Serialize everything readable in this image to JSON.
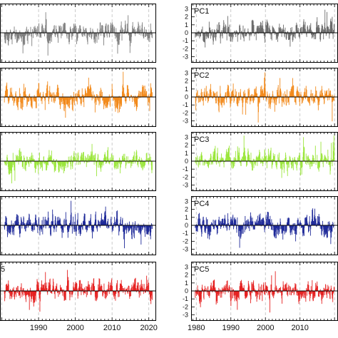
{
  "chart_data": [
    {
      "type": "bar",
      "label": "",
      "color": "#7f7f7f",
      "x_ticks": [
        "1990",
        "2000",
        "2010",
        "2020"
      ],
      "xlim": [
        1979.5,
        2022
      ],
      "ylim": [
        -3.4,
        3.4
      ],
      "y_ticks": [],
      "series_seed": 11,
      "series_amp": 1.0
    },
    {
      "type": "bar",
      "label": "PC1",
      "color": "#6b6b6b",
      "x_ticks": [
        "1980",
        "1990",
        "2000",
        "2010"
      ],
      "xlim": [
        1978.5,
        2021
      ],
      "ylim": [
        -3.4,
        3.4
      ],
      "y_ticks": [
        "3",
        "2",
        "1",
        "0",
        "-1",
        "-2",
        "-3"
      ],
      "series_seed": 21,
      "series_amp": 1.0
    },
    {
      "type": "bar",
      "label": "",
      "color": "#f28a1c",
      "x_ticks": [
        "1990",
        "2000",
        "2010",
        "2020"
      ],
      "xlim": [
        1979.5,
        2022
      ],
      "ylim": [
        -3.4,
        3.4
      ],
      "y_ticks": [],
      "series_seed": 31,
      "series_amp": 1.1
    },
    {
      "type": "bar",
      "label": "PC2",
      "color": "#f28a1c",
      "x_ticks": [
        "1980",
        "1990",
        "2000",
        "2010"
      ],
      "xlim": [
        1978.5,
        2021
      ],
      "ylim": [
        -3.4,
        3.4
      ],
      "y_ticks": [
        "3",
        "2",
        "1",
        "0",
        "-1",
        "-2",
        "-3"
      ],
      "series_seed": 41,
      "series_amp": 1.1
    },
    {
      "type": "bar",
      "label": "",
      "color": "#9be63c",
      "x_ticks": [
        "1990",
        "2000",
        "2010",
        "2020"
      ],
      "xlim": [
        1979.5,
        2022
      ],
      "ylim": [
        -3.4,
        3.4
      ],
      "y_ticks": [],
      "series_seed": 51,
      "series_amp": 1.0
    },
    {
      "type": "bar",
      "label": "PC3",
      "color": "#9be63c",
      "x_ticks": [
        "1980",
        "1990",
        "2000",
        "2010"
      ],
      "xlim": [
        1978.5,
        2021
      ],
      "ylim": [
        -3.4,
        3.4
      ],
      "y_ticks": [
        "3",
        "2",
        "1",
        "0",
        "-1",
        "-2",
        "-3"
      ],
      "series_seed": 61,
      "series_amp": 1.0
    },
    {
      "type": "bar",
      "label": "",
      "color": "#1f2a99",
      "x_ticks": [
        "1990",
        "2000",
        "2010",
        "2020"
      ],
      "xlim": [
        1979.5,
        2022
      ],
      "ylim": [
        -3.4,
        3.4
      ],
      "y_ticks": [],
      "series_seed": 71,
      "series_amp": 1.1
    },
    {
      "type": "bar",
      "label": "PC4",
      "color": "#1f2a99",
      "x_ticks": [
        "1980",
        "1990",
        "2000",
        "2010"
      ],
      "xlim": [
        1978.5,
        2021
      ],
      "ylim": [
        -3.4,
        3.4
      ],
      "y_ticks": [
        "3",
        "2",
        "1",
        "0",
        "-1",
        "-2",
        "-3"
      ],
      "series_seed": 81,
      "series_amp": 1.1
    },
    {
      "type": "bar",
      "label": "",
      "color": "#e52222",
      "x_ticks": [
        "1990",
        "2000",
        "2010",
        "2020"
      ],
      "xlim": [
        1979.5,
        2022
      ],
      "ylim": [
        -3.4,
        3.4
      ],
      "y_ticks": [],
      "series_seed": 91,
      "series_amp": 1.0
    },
    {
      "type": "bar",
      "label": "PC5",
      "color": "#e52222",
      "x_ticks": [
        "1980",
        "1990",
        "2000",
        "2010"
      ],
      "xlim": [
        1978.5,
        2021
      ],
      "ylim": [
        -3.4,
        3.4
      ],
      "y_ticks": [
        "3",
        "2",
        "1",
        "0",
        "-1",
        "-2",
        "-3"
      ],
      "series_seed": 101,
      "series_amp": 1.0
    }
  ],
  "partial_labels": [
    "",
    "",
    "",
    "",
    "5"
  ]
}
